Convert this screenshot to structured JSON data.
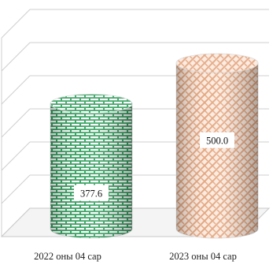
{
  "chart_data": {
    "type": "bar",
    "style": "3d-cylinder",
    "categories": [
      "2022 оны 04 сар",
      "2023 оны 04 сар"
    ],
    "values": [
      377.6,
      500.0
    ],
    "value_labels": [
      "377.6",
      "500.0"
    ],
    "ylim": [
      0,
      600
    ],
    "grid": true,
    "legend": "none",
    "colors": {
      "series": [
        "#2e9e5b",
        "#e3a27a"
      ],
      "grid": "#cfcfcf"
    }
  }
}
